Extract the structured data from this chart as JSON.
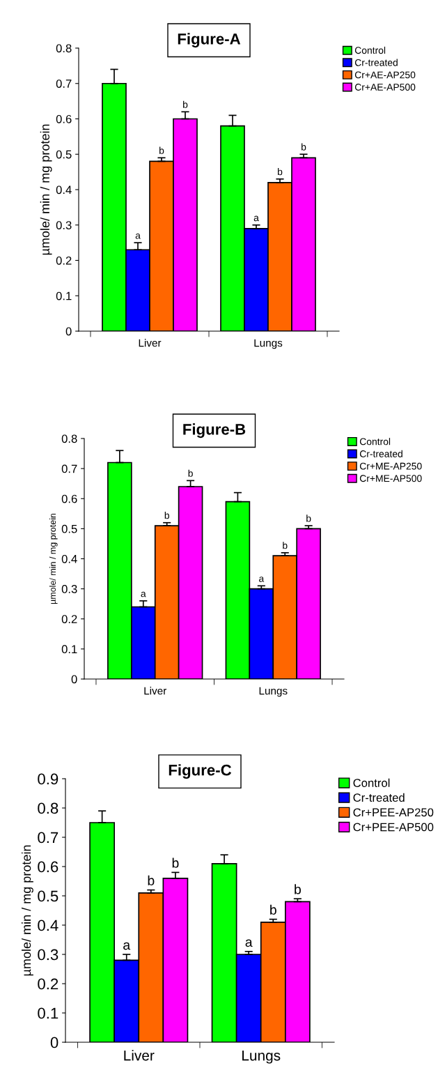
{
  "chart_data": [
    {
      "type": "bar",
      "title": "Figure-A",
      "ylabel": "µmole/ min / mg protein",
      "categories": [
        "Liver",
        "Lungs"
      ],
      "ylim": [
        0,
        0.8
      ],
      "yticks": [
        0,
        0.1,
        0.2,
        0.3,
        0.4,
        0.5,
        0.6,
        0.7,
        0.8
      ],
      "grid": false,
      "legend": "top right",
      "series": [
        {
          "name": "Control",
          "color": "#00ff00",
          "values": [
            0.7,
            0.58
          ],
          "errors": [
            [
              0.7,
              0.74
            ],
            [
              0.58,
              0.61
            ]
          ]
        },
        {
          "name": "Cr-treated",
          "color": "#0000ff",
          "values": [
            0.23,
            0.29
          ],
          "errors": [
            [
              0.23,
              0.25
            ],
            [
              0.29,
              0.3
            ]
          ],
          "value_labels": [
            "a",
            "a"
          ]
        },
        {
          "name": "Cr+AE-AP250",
          "color": "#ff6600",
          "values": [
            0.48,
            0.42
          ],
          "errors": [
            [
              0.48,
              0.49
            ],
            [
              0.42,
              0.43
            ]
          ],
          "value_labels": [
            "b",
            "b"
          ]
        },
        {
          "name": "Cr+AE-AP500",
          "color": "#ff00ff",
          "values": [
            0.6,
            0.49
          ],
          "errors": [
            [
              0.6,
              0.62
            ],
            [
              0.49,
              0.5
            ]
          ],
          "value_labels": [
            "b",
            "b"
          ]
        }
      ]
    },
    {
      "type": "bar",
      "title": "Figure-B",
      "ylabel": "µmole/ min / mg protein",
      "categories": [
        "Liver",
        "Lungs"
      ],
      "ylim": [
        0,
        0.8
      ],
      "yticks": [
        0,
        0.1,
        0.2,
        0.3,
        0.4,
        0.5,
        0.6,
        0.7,
        0.8
      ],
      "grid": false,
      "legend": "top right",
      "series": [
        {
          "name": "Control",
          "color": "#00ff00",
          "values": [
            0.72,
            0.59
          ],
          "errors": [
            [
              0.72,
              0.76
            ],
            [
              0.59,
              0.62
            ]
          ]
        },
        {
          "name": "Cr-treated",
          "color": "#0000ff",
          "values": [
            0.24,
            0.3
          ],
          "errors": [
            [
              0.24,
              0.26
            ],
            [
              0.3,
              0.31
            ]
          ],
          "value_labels": [
            "a",
            "a"
          ]
        },
        {
          "name": "Cr+ME-AP250",
          "color": "#ff6600",
          "values": [
            0.51,
            0.41
          ],
          "errors": [
            [
              0.51,
              0.52
            ],
            [
              0.41,
              0.42
            ]
          ],
          "value_labels": [
            "b",
            "b"
          ]
        },
        {
          "name": "Cr+ME-AP500",
          "color": "#ff00ff",
          "values": [
            0.64,
            0.5
          ],
          "errors": [
            [
              0.64,
              0.66
            ],
            [
              0.5,
              0.51
            ]
          ],
          "value_labels": [
            "b",
            "b"
          ]
        }
      ]
    },
    {
      "type": "bar",
      "title": "Figure-C",
      "ylabel": "µmole/ min / mg protein",
      "categories": [
        "Liver",
        "Lungs"
      ],
      "ylim": [
        0,
        0.9
      ],
      "yticks": [
        0,
        0.1,
        0.2,
        0.3,
        0.4,
        0.5,
        0.6,
        0.7,
        0.8,
        0.9
      ],
      "grid": false,
      "legend": "top right",
      "series": [
        {
          "name": "Control",
          "color": "#00ff00",
          "values": [
            0.75,
            0.61
          ],
          "errors": [
            [
              0.75,
              0.79
            ],
            [
              0.61,
              0.64
            ]
          ]
        },
        {
          "name": "Cr-treated",
          "color": "#0000ff",
          "values": [
            0.28,
            0.3
          ],
          "errors": [
            [
              0.28,
              0.3
            ],
            [
              0.3,
              0.31
            ]
          ],
          "value_labels": [
            "a",
            "a"
          ]
        },
        {
          "name": "Cr+PEE-AP250",
          "color": "#ff6600",
          "values": [
            0.51,
            0.41
          ],
          "errors": [
            [
              0.51,
              0.52
            ],
            [
              0.41,
              0.42
            ]
          ],
          "value_labels": [
            "b",
            "b"
          ]
        },
        {
          "name": "Cr+PEE-AP500",
          "color": "#ff00ff",
          "values": [
            0.56,
            0.48
          ],
          "errors": [
            [
              0.56,
              0.58
            ],
            [
              0.48,
              0.49
            ]
          ],
          "value_labels": [
            "b",
            "b"
          ]
        }
      ]
    }
  ]
}
